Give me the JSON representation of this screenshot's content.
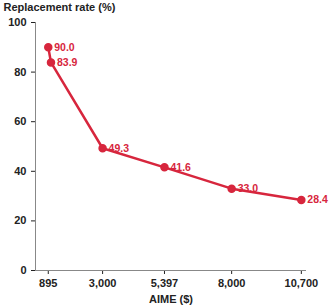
{
  "chart_data": {
    "type": "line",
    "x_label": "AIME ($)",
    "y_label": "Replacement rate (%)",
    "x": [
      895,
      1000,
      3000,
      5397,
      8000,
      10700
    ],
    "values": [
      90,
      83.9,
      49.3,
      41.6,
      33,
      28.4
    ],
    "value_labels": [
      "90.0",
      "83.9",
      "49.3",
      "41.6",
      "33.0",
      "28.4"
    ],
    "color": "#d7263d",
    "marker": "circle",
    "data_labels": true,
    "grid": false,
    "xlim": [
      400,
      10900
    ],
    "xticks": [
      895,
      {
        "value": 3000,
        "label": "3,000"
      },
      {
        "value": 5397,
        "label": "5,397"
      },
      {
        "value": 8000,
        "label": "8,000"
      },
      {
        "value": 10700,
        "label": "10,700"
      }
    ],
    "ylim": [
      0,
      100
    ],
    "yticks": [
      0,
      20,
      40,
      60,
      80,
      100
    ]
  }
}
